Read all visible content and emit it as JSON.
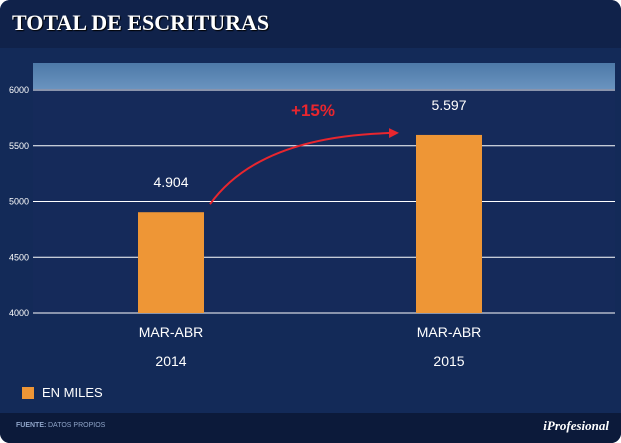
{
  "title": "TOTAL DE ESCRITURAS",
  "chart_data": {
    "type": "bar",
    "categories": [
      "MAR-ABR 2014",
      "MAR-ABR 2015"
    ],
    "category_lines": [
      [
        "MAR-ABR",
        "2014"
      ],
      [
        "MAR-ABR",
        "2015"
      ]
    ],
    "values": [
      4904,
      5597
    ],
    "value_labels": [
      "4.904",
      "5.597"
    ],
    "ylim": [
      4000,
      6000
    ],
    "yticks": [
      4000,
      4500,
      5000,
      5500,
      6000
    ],
    "grid": true,
    "annotation": "+15%",
    "legend": "EN MILES",
    "bar_color": "#ee9636",
    "arrow_color": "#e8262e"
  },
  "footer": {
    "source_label": "FUENTE:",
    "source_text": "DATOS PROPIOS",
    "brand": "iProfesional"
  }
}
